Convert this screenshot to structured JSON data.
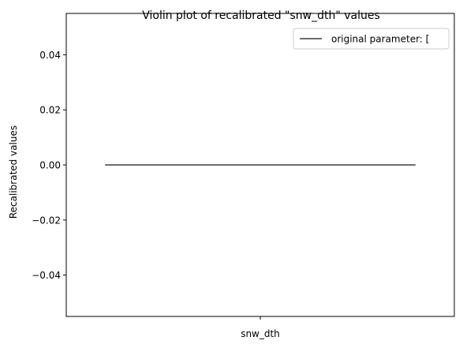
{
  "chart_data": {
    "type": "violin",
    "title": "Violin plot of recalibrated \"snw_dth\" values",
    "xlabel": "",
    "ylabel": "Recalibrated values",
    "categories": [
      "snw_dth"
    ],
    "ylim": [
      -0.055,
      0.055
    ],
    "yticks": [
      -0.04,
      -0.02,
      0.0,
      0.02,
      0.04
    ],
    "ytick_labels": [
      "−0.04",
      "−0.02",
      "0.00",
      "0.02",
      "0.04"
    ],
    "series": [
      {
        "name": "original parameter: [",
        "type": "hline",
        "y": 0.0,
        "x_extent": [
          -0.44,
          0.44
        ],
        "color": "#3f3f3f"
      }
    ],
    "xlim": [
      -0.55,
      0.55
    ],
    "legend_position": "top-right",
    "grid": false
  }
}
